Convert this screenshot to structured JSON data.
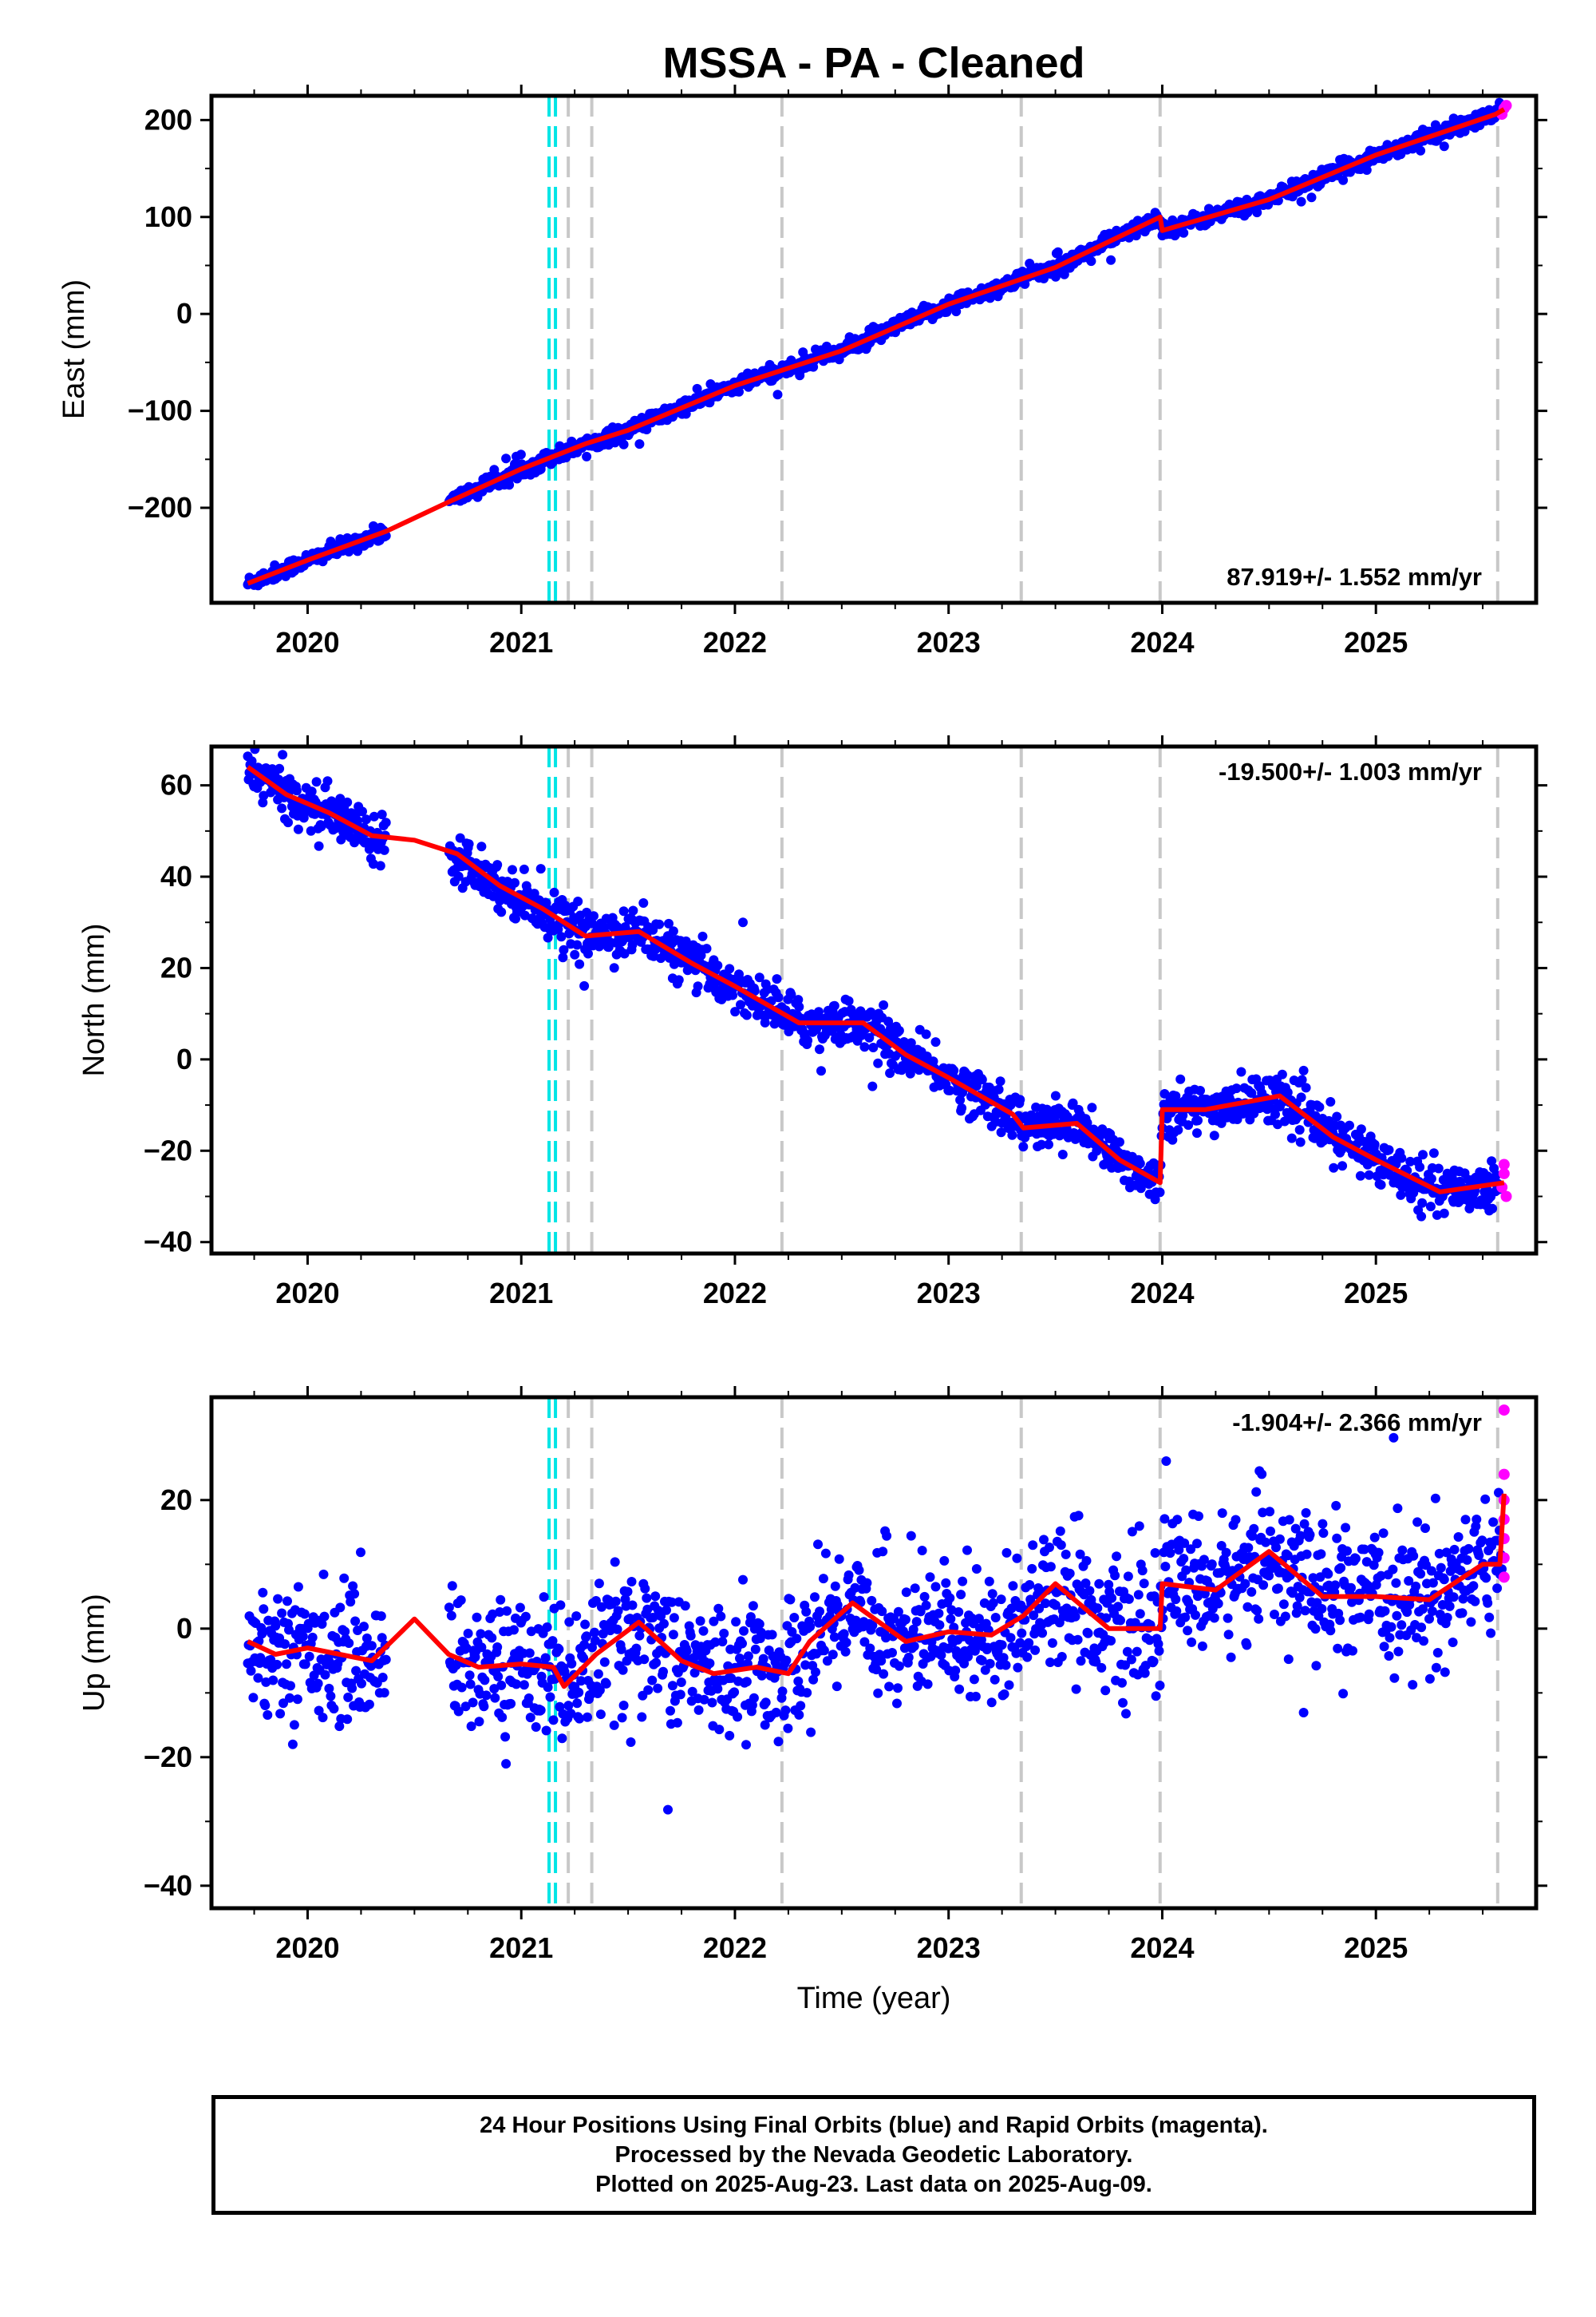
{
  "title": "MSSA  - PA - Cleaned",
  "footer": {
    "line1": "24 Hour Positions Using Final Orbits (blue) and Rapid Orbits (magenta).",
    "line2": "Processed by the Nevada Geodetic Laboratory.",
    "line3": "Plotted on 2025-Aug-23. Last data on 2025-Aug-09."
  },
  "colors": {
    "final_orbits": "#0000ff",
    "rapid_orbits": "#ff00ff",
    "model": "#ff0000",
    "equipment_change": "#c8c8c8",
    "earthquake": "#00e5e5"
  },
  "chart_data": [
    {
      "type": "scatter",
      "panel": "east",
      "ylabel": "East (mm)",
      "xlabel": "",
      "rate": "87.919+/- 1.552 mm/yr",
      "xlim": [
        2019.55,
        2025.75
      ],
      "ylim": [
        -298,
        225
      ],
      "yticks": [
        -200,
        -100,
        0,
        100,
        200
      ],
      "ytick_labels": [
        "−200",
        "−100",
        "0",
        "100",
        "200"
      ],
      "xticks": [
        2020,
        2021,
        2022,
        2023,
        2024,
        2025
      ],
      "xtick_labels": [
        "2020",
        "2021",
        "2022",
        "2023",
        "2024",
        "2025"
      ],
      "gaps": [
        [
          2020.37,
          2020.66
        ]
      ],
      "model": [
        [
          2019.72,
          -278
        ],
        [
          2020.0,
          -254
        ],
        [
          2020.37,
          -224
        ],
        [
          2020.66,
          -194
        ],
        [
          2021.0,
          -160
        ],
        [
          2021.3,
          -134
        ],
        [
          2021.5,
          -120
        ],
        [
          2022.0,
          -74
        ],
        [
          2022.5,
          -38
        ],
        [
          2023.0,
          10
        ],
        [
          2023.5,
          48
        ],
        [
          2023.99,
          100
        ],
        [
          2024.0,
          86
        ],
        [
          2024.5,
          118
        ],
        [
          2025.0,
          164
        ],
        [
          2025.56,
          206
        ],
        [
          2025.6,
          211
        ]
      ],
      "noise": 4,
      "rapid_orbits": [
        [
          2025.59,
          206
        ],
        [
          2025.6,
          212
        ],
        [
          2025.61,
          215
        ]
      ]
    },
    {
      "type": "scatter",
      "panel": "north",
      "ylabel": "North (mm)",
      "xlabel": "",
      "rate": "-19.500+/- 1.003 mm/yr",
      "xlim": [
        2019.55,
        2025.75
      ],
      "ylim": [
        -42.5,
        68.5
      ],
      "yticks": [
        -40,
        -20,
        0,
        20,
        40,
        60
      ],
      "ytick_labels": [
        "−40",
        "−20",
        "0",
        "20",
        "40",
        "60"
      ],
      "xticks": [
        2020,
        2021,
        2022,
        2023,
        2024,
        2025
      ],
      "xtick_labels": [
        "2020",
        "2021",
        "2022",
        "2023",
        "2024",
        "2025"
      ],
      "gaps": [
        [
          2020.37,
          2020.66
        ]
      ],
      "model": [
        [
          2019.72,
          64
        ],
        [
          2019.9,
          58
        ],
        [
          2020.1,
          54
        ],
        [
          2020.3,
          49
        ],
        [
          2020.5,
          48
        ],
        [
          2020.7,
          45
        ],
        [
          2020.9,
          38
        ],
        [
          2021.1,
          33
        ],
        [
          2021.3,
          27
        ],
        [
          2021.55,
          28
        ],
        [
          2021.8,
          21
        ],
        [
          2022.0,
          16
        ],
        [
          2022.3,
          8
        ],
        [
          2022.6,
          8
        ],
        [
          2022.8,
          1
        ],
        [
          2023.0,
          -4
        ],
        [
          2023.3,
          -12
        ],
        [
          2023.35,
          -15
        ],
        [
          2023.6,
          -14
        ],
        [
          2023.8,
          -22
        ],
        [
          2023.99,
          -27
        ],
        [
          2024.0,
          -11
        ],
        [
          2024.2,
          -11
        ],
        [
          2024.55,
          -8
        ],
        [
          2024.8,
          -17
        ],
        [
          2025.0,
          -22
        ],
        [
          2025.3,
          -29
        ],
        [
          2025.6,
          -27
        ]
      ],
      "noise": 2.5,
      "rapid_orbits": [
        [
          2025.59,
          -28
        ],
        [
          2025.6,
          -25
        ],
        [
          2025.61,
          -30
        ],
        [
          2025.6,
          -23
        ]
      ]
    },
    {
      "type": "scatter",
      "panel": "up",
      "ylabel": "Up (mm)",
      "xlabel": "Time (year)",
      "rate": "-1.904+/- 2.366 mm/yr",
      "xlim": [
        2019.55,
        2025.75
      ],
      "ylim": [
        -43.5,
        36
      ],
      "yticks": [
        -40,
        -20,
        0,
        20
      ],
      "ytick_labels": [
        "−40",
        "−20",
        "0",
        "20"
      ],
      "xticks": [
        2020,
        2021,
        2022,
        2023,
        2024,
        2025
      ],
      "xtick_labels": [
        "2020",
        "2021",
        "2022",
        "2023",
        "2024",
        "2025"
      ],
      "gaps": [
        [
          2020.37,
          2020.66
        ]
      ],
      "model": [
        [
          2019.72,
          -2
        ],
        [
          2019.85,
          -4
        ],
        [
          2020.0,
          -3
        ],
        [
          2020.15,
          -4
        ],
        [
          2020.3,
          -5
        ],
        [
          2020.5,
          1.5
        ],
        [
          2020.66,
          -4
        ],
        [
          2020.8,
          -6
        ],
        [
          2021.0,
          -5.5
        ],
        [
          2021.15,
          -6
        ],
        [
          2021.2,
          -9
        ],
        [
          2021.35,
          -4
        ],
        [
          2021.55,
          1
        ],
        [
          2021.75,
          -5
        ],
        [
          2021.9,
          -7
        ],
        [
          2022.1,
          -6
        ],
        [
          2022.25,
          -7
        ],
        [
          2022.35,
          -2
        ],
        [
          2022.55,
          4
        ],
        [
          2022.8,
          -2
        ],
        [
          2023.0,
          -0.5
        ],
        [
          2023.2,
          -1
        ],
        [
          2023.35,
          2
        ],
        [
          2023.5,
          7
        ],
        [
          2023.75,
          0
        ],
        [
          2023.99,
          0
        ],
        [
          2024.0,
          7
        ],
        [
          2024.25,
          6
        ],
        [
          2024.5,
          12
        ],
        [
          2024.75,
          5
        ],
        [
          2025.0,
          5
        ],
        [
          2025.25,
          4.5
        ],
        [
          2025.5,
          10
        ],
        [
          2025.58,
          10
        ],
        [
          2025.6,
          21
        ]
      ],
      "noise": 5,
      "rapid_orbits": [
        [
          2025.6,
          34
        ],
        [
          2025.6,
          24
        ],
        [
          2025.6,
          20
        ],
        [
          2025.6,
          17
        ],
        [
          2025.6,
          14
        ],
        [
          2025.6,
          11
        ],
        [
          2025.6,
          8
        ]
      ]
    }
  ],
  "equipment_changes": [
    2021.22,
    2021.33,
    2022.22,
    2023.34,
    2023.99,
    2025.57
  ],
  "earthquakes": [
    2021.13,
    2021.16
  ],
  "xlim": [
    2019.55,
    2025.75
  ]
}
